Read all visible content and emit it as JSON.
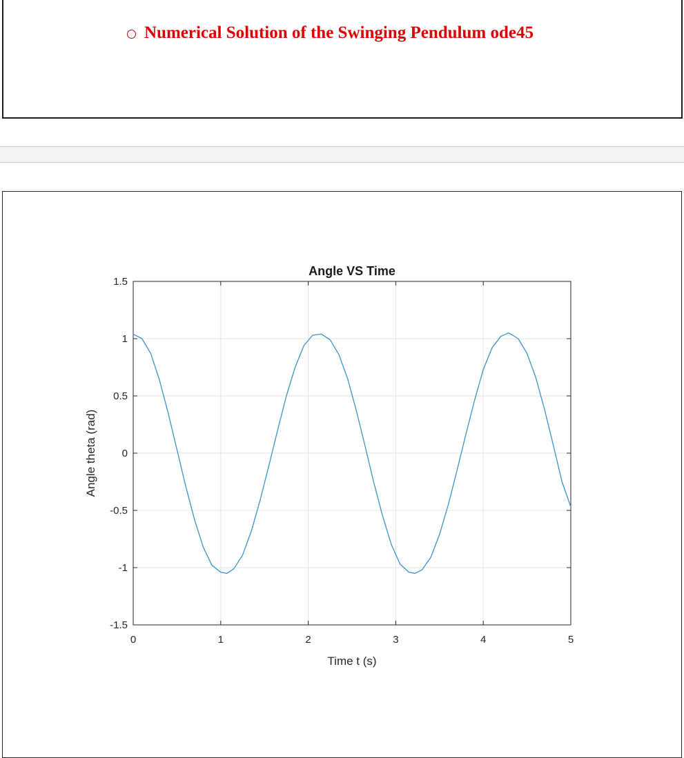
{
  "heading": {
    "bullet": "o",
    "text": "Numerical Solution of the Swinging Pendulum ode45",
    "color": "#e00000"
  },
  "chart_data": {
    "type": "line",
    "title": "Angle VS Time",
    "xlabel": "Time t (s)",
    "ylabel": "Angle theta (rad)",
    "xlim": [
      0,
      5
    ],
    "ylim": [
      -1.5,
      1.5
    ],
    "xticks": [
      "0",
      "1",
      "2",
      "3",
      "4",
      "5"
    ],
    "yticks": [
      "1.5",
      "1",
      "0.5",
      "0",
      "-0.5",
      "-1",
      "-1.5"
    ],
    "grid": true,
    "line_color": "#3a93c8",
    "series": [
      {
        "x": [
          0,
          0.1,
          0.2,
          0.3,
          0.4,
          0.5,
          0.6,
          0.7,
          0.8,
          0.9,
          1.0,
          1.07,
          1.15,
          1.25,
          1.35,
          1.45,
          1.55,
          1.65,
          1.75,
          1.85,
          1.95,
          2.05,
          2.15,
          2.25,
          2.35,
          2.45,
          2.55,
          2.65,
          2.75,
          2.85,
          2.95,
          3.05,
          3.15,
          3.22,
          3.3,
          3.4,
          3.5,
          3.6,
          3.7,
          3.8,
          3.9,
          4.0,
          4.1,
          4.2,
          4.29,
          4.4,
          4.5,
          4.6,
          4.7,
          4.8,
          4.9,
          5.0
        ],
        "y": [
          1.04,
          1.0,
          0.87,
          0.64,
          0.35,
          0.03,
          -0.29,
          -0.58,
          -0.82,
          -0.98,
          -1.04,
          -1.05,
          -1.01,
          -0.89,
          -0.68,
          -0.41,
          -0.11,
          0.2,
          0.5,
          0.75,
          0.94,
          1.03,
          1.04,
          0.99,
          0.86,
          0.65,
          0.37,
          0.06,
          -0.26,
          -0.55,
          -0.8,
          -0.97,
          -1.04,
          -1.05,
          -1.02,
          -0.91,
          -0.71,
          -0.45,
          -0.15,
          0.16,
          0.46,
          0.73,
          0.92,
          1.02,
          1.05,
          1.0,
          0.87,
          0.66,
          0.38,
          0.07,
          -0.25,
          -0.47
        ]
      }
    ]
  }
}
